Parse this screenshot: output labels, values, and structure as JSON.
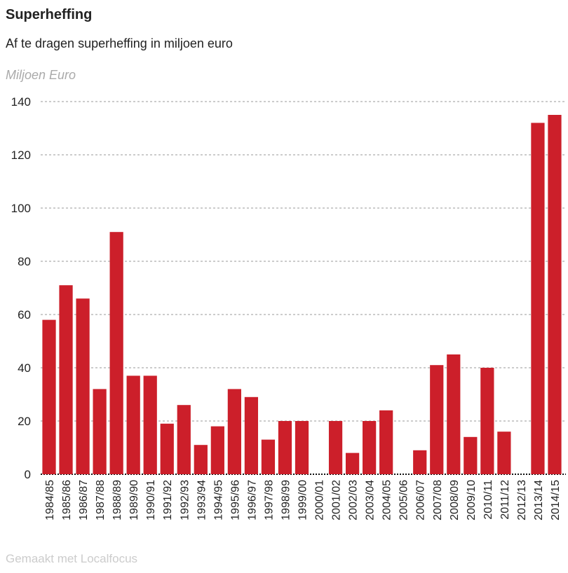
{
  "chart_data": {
    "type": "bar",
    "title": "Superheffing",
    "subtitle": "Af te dragen superheffing in miljoen euro",
    "ylabel": "Miljoen Euro",
    "xlabel": "",
    "ylim": [
      0,
      140
    ],
    "yticks": [
      0,
      20,
      40,
      60,
      80,
      100,
      120,
      140
    ],
    "grid": true,
    "categories": [
      "1984/85",
      "1985/86",
      "1986/87",
      "1987/88",
      "1988/89",
      "1989/90",
      "1990/91",
      "1991/92",
      "1992/93",
      "1993/94",
      "1994/95",
      "1995/96",
      "1996/97",
      "1997/98",
      "1998/99",
      "1999/00",
      "2000/01",
      "2001/02",
      "2002/03",
      "2003/04",
      "2004/05",
      "2005/06",
      "2006/07",
      "2007/08",
      "2008/09",
      "2009/10",
      "2010/11",
      "2011/12",
      "2012/13",
      "2013/14",
      "2014/15"
    ],
    "values": [
      58,
      71,
      66,
      32,
      91,
      37,
      37,
      19,
      26,
      11,
      18,
      32,
      29,
      13,
      20,
      20,
      0,
      20,
      8,
      20,
      24,
      0,
      9,
      41,
      45,
      14,
      40,
      16,
      0,
      132,
      135
    ],
    "bar_color": "#cc1f2a",
    "footer": "Gemaakt met Localfocus"
  }
}
